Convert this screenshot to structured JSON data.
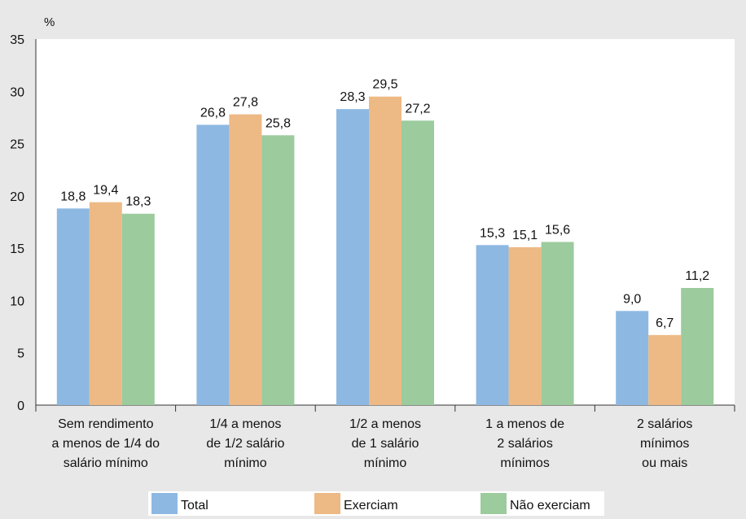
{
  "chart_data": {
    "type": "bar",
    "unit": "%",
    "ylim": [
      0,
      35
    ],
    "yticks": [
      "0",
      "5",
      "10",
      "15",
      "20",
      "25",
      "30",
      "35"
    ],
    "grid": false,
    "legend_position": "bottom",
    "categories": [
      [
        "Sem rendimento",
        "a menos de 1/4 do",
        "salário mínimo"
      ],
      [
        "1/4 a menos",
        "de 1/2 salário",
        "mínimo"
      ],
      [
        "1/2 a menos",
        "de 1 salário",
        "mínimo"
      ],
      [
        "1 a menos de",
        "2 salários",
        "mínimos"
      ],
      [
        "2 salários",
        "mínimos",
        "ou mais"
      ]
    ],
    "series": [
      {
        "name": "Total",
        "color": "#8db8e2",
        "values": [
          18.8,
          26.8,
          28.3,
          15.3,
          9.0
        ],
        "labels": [
          "18,8",
          "26,8",
          "28,3",
          "15,3",
          "9,0"
        ]
      },
      {
        "name": "Exerciam",
        "color": "#edb985",
        "values": [
          19.4,
          27.8,
          29.5,
          15.1,
          6.7
        ],
        "labels": [
          "19,4",
          "27,8",
          "29,5",
          "15,1",
          "6,7"
        ]
      },
      {
        "name": "Não exerciam",
        "color": "#9ccb9d",
        "values": [
          18.3,
          25.8,
          27.2,
          15.6,
          11.2
        ],
        "labels": [
          "18,3",
          "25,8",
          "27,2",
          "15,6",
          "11,2"
        ]
      }
    ]
  }
}
